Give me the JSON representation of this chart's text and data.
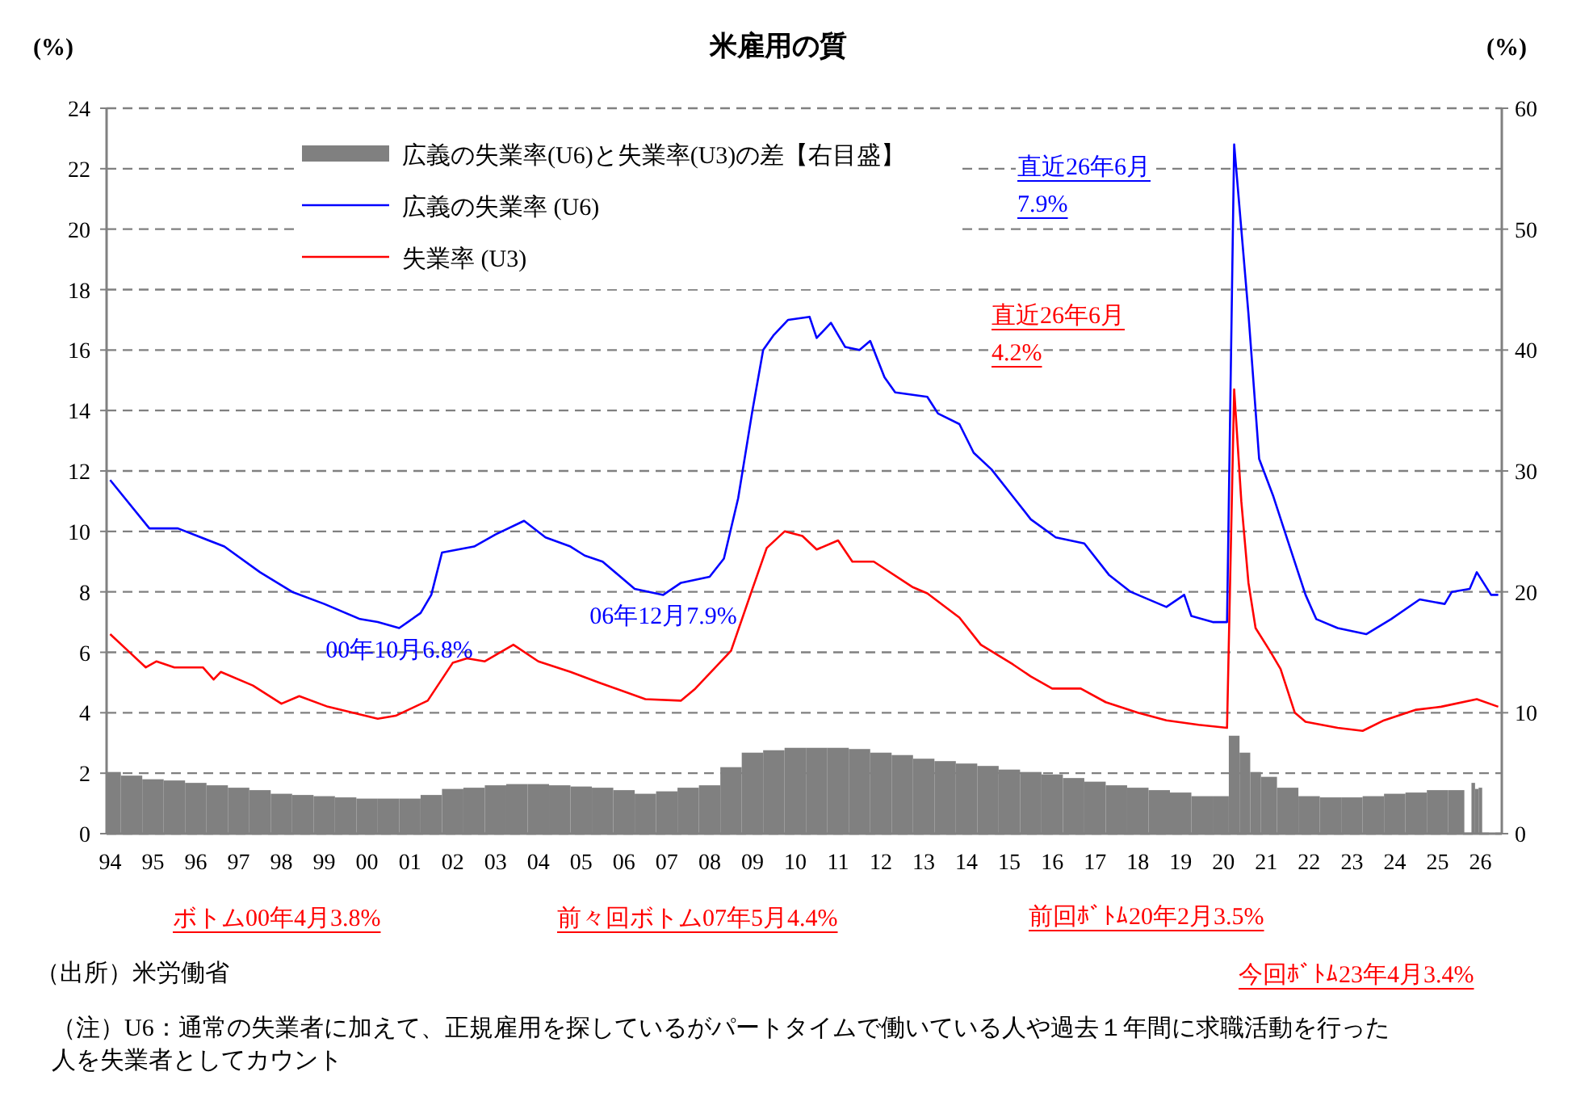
{
  "chart_data": {
    "type": "line",
    "title": "米雇用の質",
    "ylabel": "(%)",
    "y2label": "(%)",
    "xlim": [
      "1993-12",
      "2026-07"
    ],
    "xticks": [
      {
        "value": "1994-01",
        "label": "94"
      },
      {
        "value": "1995-01",
        "label": "95"
      },
      {
        "value": "1996-01",
        "label": "96"
      },
      {
        "value": "1997-01",
        "label": "97"
      },
      {
        "value": "1998-01",
        "label": "98"
      },
      {
        "value": "1999-01",
        "label": "99"
      },
      {
        "value": "2000-01",
        "label": "00"
      },
      {
        "value": "2001-01",
        "label": "01"
      },
      {
        "value": "2002-01",
        "label": "02"
      },
      {
        "value": "2003-01",
        "label": "03"
      },
      {
        "value": "2004-01",
        "label": "04"
      },
      {
        "value": "2005-01",
        "label": "05"
      },
      {
        "value": "2006-01",
        "label": "06"
      },
      {
        "value": "2007-01",
        "label": "07"
      },
      {
        "value": "2008-01",
        "label": "08"
      },
      {
        "value": "2009-01",
        "label": "09"
      },
      {
        "value": "2010-01",
        "label": "10"
      },
      {
        "value": "2011-01",
        "label": "11"
      },
      {
        "value": "2012-01",
        "label": "12"
      },
      {
        "value": "2013-01",
        "label": "13"
      },
      {
        "value": "2014-01",
        "label": "14"
      },
      {
        "value": "2015-01",
        "label": "15"
      },
      {
        "value": "2016-01",
        "label": "16"
      },
      {
        "value": "2017-01",
        "label": "17"
      },
      {
        "value": "2018-01",
        "label": "18"
      },
      {
        "value": "2019-01",
        "label": "19"
      },
      {
        "value": "2020-01",
        "label": "20"
      },
      {
        "value": "2021-01",
        "label": "21"
      },
      {
        "value": "2022-01",
        "label": "22"
      },
      {
        "value": "2023-01",
        "label": "23"
      },
      {
        "value": "2024-01",
        "label": "24"
      },
      {
        "value": "2025-01",
        "label": "25"
      },
      {
        "value": "2026-01",
        "label": "26"
      }
    ],
    "ylim": [
      0,
      24
    ],
    "yticks": [
      0,
      2,
      4,
      6,
      8,
      10,
      12,
      14,
      16,
      18,
      20,
      22,
      24
    ],
    "y2lim": [
      0,
      60
    ],
    "y2ticks": [
      0,
      10,
      20,
      30,
      40,
      50,
      60
    ],
    "grid": "y",
    "legend": "top left",
    "series": [
      {
        "name": "広義の失業率(U6)と失業率(U3)の差【右目盛】",
        "type": "bar",
        "axis": "y2",
        "color": "#808080",
        "x": [
          "1994-01",
          "1994-07",
          "1995-01",
          "1995-07",
          "1996-01",
          "1996-07",
          "1997-01",
          "1997-07",
          "1998-01",
          "1998-07",
          "1999-01",
          "1999-07",
          "2000-01",
          "2000-07",
          "2001-01",
          "2001-07",
          "2002-01",
          "2002-07",
          "2003-01",
          "2003-07",
          "2004-01",
          "2004-07",
          "2005-01",
          "2005-07",
          "2006-01",
          "2006-07",
          "2007-01",
          "2007-07",
          "2008-01",
          "2008-07",
          "2009-01",
          "2009-07",
          "2010-01",
          "2010-07",
          "2011-01",
          "2011-07",
          "2012-01",
          "2012-07",
          "2013-01",
          "2013-07",
          "2014-01",
          "2014-07",
          "2015-01",
          "2015-07",
          "2016-01",
          "2016-07",
          "2017-01",
          "2017-07",
          "2018-01",
          "2018-07",
          "2019-01",
          "2019-07",
          "2020-01",
          "2020-04",
          "2020-07",
          "2020-10",
          "2021-01",
          "2021-07",
          "2022-01",
          "2022-07",
          "2023-01",
          "2023-07",
          "2024-01",
          "2024-07",
          "2025-01",
          "2025-07",
          "2025-10",
          "2025-11",
          "2025-12",
          "2026-01"
        ],
        "values": [
          5.1,
          4.8,
          4.5,
          4.4,
          4.2,
          4.0,
          3.8,
          3.6,
          3.3,
          3.2,
          3.1,
          3.0,
          2.9,
          2.9,
          2.9,
          3.2,
          3.7,
          3.8,
          4.0,
          4.1,
          4.1,
          4.0,
          3.9,
          3.8,
          3.6,
          3.3,
          3.5,
          3.8,
          4.0,
          5.5,
          6.7,
          6.9,
          7.1,
          7.1,
          7.1,
          7.0,
          6.7,
          6.5,
          6.2,
          6.0,
          5.8,
          5.6,
          5.3,
          5.1,
          4.9,
          4.6,
          4.3,
          4.0,
          3.8,
          3.6,
          3.4,
          3.1,
          3.1,
          8.1,
          6.7,
          5.1,
          4.7,
          3.8,
          3.1,
          3.0,
          3.0,
          3.1,
          3.3,
          3.4,
          3.6,
          3.6,
          null,
          4.2,
          3.7,
          3.8
        ]
      },
      {
        "name": "広義の失業率 (U6)",
        "color": "#0000ff",
        "x": [
          "1994-01",
          "1994-12",
          "1995-08",
          "1996-09",
          "1997-07",
          "1998-04",
          "1999-01",
          "1999-11",
          "2000-04",
          "2000-10",
          "2001-04",
          "2001-07",
          "2001-10",
          "2002-07",
          "2003-01",
          "2003-09",
          "2004-03",
          "2004-10",
          "2005-02",
          "2005-07",
          "2006-04",
          "2006-12",
          "2007-05",
          "2008-01",
          "2008-05",
          "2008-09",
          "2009-01",
          "2009-04",
          "2009-07",
          "2009-11",
          "2010-05",
          "2010-07",
          "2010-11",
          "2011-03",
          "2011-07",
          "2011-10",
          "2012-02",
          "2012-05",
          "2013-02",
          "2013-05",
          "2013-11",
          "2014-03",
          "2014-08",
          "2015-02",
          "2015-07",
          "2016-02",
          "2016-10",
          "2017-05",
          "2017-11",
          "2018-09",
          "2019-02",
          "2019-04",
          "2019-10",
          "2020-02",
          "2020-04",
          "2020-08",
          "2020-11",
          "2021-03",
          "2021-07",
          "2021-12",
          "2022-03",
          "2022-09",
          "2023-05",
          "2023-12",
          "2024-08",
          "2025-03",
          "2025-05",
          "2025-10",
          "2025-12",
          "2026-04",
          "2026-06"
        ],
        "values": [
          11.7,
          10.1,
          10.1,
          9.5,
          8.65,
          8.0,
          7.6,
          7.1,
          7.0,
          6.8,
          7.3,
          7.9,
          9.3,
          9.5,
          9.9,
          10.35,
          9.8,
          9.5,
          9.2,
          9.0,
          8.1,
          7.9,
          8.3,
          8.5,
          9.1,
          11.1,
          14.0,
          16.0,
          16.5,
          17.0,
          17.1,
          16.4,
          16.9,
          16.1,
          16.0,
          16.3,
          15.1,
          14.6,
          14.45,
          13.9,
          13.55,
          12.6,
          12.05,
          11.15,
          10.4,
          9.8,
          9.6,
          8.55,
          8.0,
          7.5,
          7.9,
          7.2,
          7.0,
          7.0,
          22.8,
          17.2,
          12.4,
          11.15,
          9.7,
          7.9,
          7.1,
          6.8,
          6.6,
          7.1,
          7.75,
          7.6,
          8.0,
          8.1,
          8.65,
          7.9,
          7.9
        ]
      },
      {
        "name": "失業率 (U3)",
        "color": "#ff0000",
        "x": [
          "1994-01",
          "1994-06",
          "1994-11",
          "1995-02",
          "1995-07",
          "1996-03",
          "1996-06",
          "1996-08",
          "1997-05",
          "1998-01",
          "1998-06",
          "1999-02",
          "2000-04",
          "2000-09",
          "2001-06",
          "2002-01",
          "2002-05",
          "2002-10",
          "2003-06",
          "2004-01",
          "2004-10",
          "2005-06",
          "2006-07",
          "2007-05",
          "2007-09",
          "2008-07",
          "2009-01",
          "2009-05",
          "2009-10",
          "2010-03",
          "2010-07",
          "2011-01",
          "2011-05",
          "2011-11",
          "2012-10",
          "2013-02",
          "2013-11",
          "2014-05",
          "2015-02",
          "2015-07",
          "2016-01",
          "2016-09",
          "2017-04",
          "2018-01",
          "2018-09",
          "2019-06",
          "2020-02",
          "2020-04",
          "2020-06",
          "2020-08",
          "2020-10",
          "2021-02",
          "2021-05",
          "2021-09",
          "2021-12",
          "2022-09",
          "2023-04",
          "2023-10",
          "2024-07",
          "2025-02",
          "2025-12",
          "2026-06"
        ],
        "values": [
          6.6,
          6.05,
          5.5,
          5.7,
          5.5,
          5.5,
          5.1,
          5.35,
          4.9,
          4.3,
          4.55,
          4.2,
          3.8,
          3.9,
          4.4,
          5.65,
          5.8,
          5.7,
          6.25,
          5.7,
          5.35,
          5.0,
          4.45,
          4.4,
          4.8,
          6.05,
          8.1,
          9.45,
          10.0,
          9.85,
          9.4,
          9.7,
          9.0,
          9.0,
          8.15,
          7.95,
          7.15,
          6.25,
          5.6,
          5.2,
          4.8,
          4.8,
          4.35,
          4.0,
          3.75,
          3.6,
          3.5,
          14.7,
          11.0,
          8.3,
          6.8,
          6.05,
          5.45,
          4.0,
          3.7,
          3.5,
          3.4,
          3.75,
          4.1,
          4.2,
          4.45,
          4.2
        ]
      }
    ],
    "annotations": [
      {
        "text": "00年10月6.8%",
        "x": "2000-10",
        "y": 6.8
      },
      {
        "text": "06年12月7.9%",
        "x": "2006-12",
        "y": 7.9
      },
      "直近26年6月7.9%",
      "直近26年6月4.2%",
      "ボトム00年4月3.8%",
      "前々回ボトム07年5月4.4%",
      "前回ﾎﾞﾄﾑ20年2月3.5%",
      "今回ﾎﾞﾄﾑ23年4月3.4%",
      "（出所）米労働省",
      "（注）U6：通常の失業者に加えて、正規雇用を探しているがパートタイムで働いている人や過去１年間に求職活動を行った人を失業者としてカウント"
    ]
  }
}
